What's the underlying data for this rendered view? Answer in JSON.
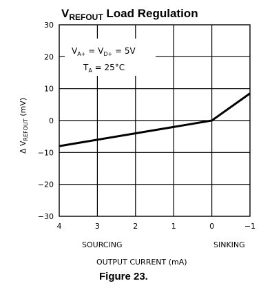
{
  "chart_data": {
    "type": "line",
    "title": {
      "main": "V",
      "sub": "REFOUT",
      "rest": " Load Regulation"
    },
    "ylabel": {
      "prefix": "Δ V",
      "sub": "REFOUT",
      "suffix": " (mV)"
    },
    "xlabel": "OUTPUT CURRENT (mA)",
    "xlabel_left": "SOURCING",
    "xlabel_right": "SINKING",
    "x_reversed": true,
    "xlim": [
      4,
      -1
    ],
    "ylim": [
      -30,
      30
    ],
    "x_ticks": [
      4,
      3,
      2,
      1,
      0,
      -1
    ],
    "x_tick_labels": [
      "4",
      "3",
      "2",
      "1",
      "0",
      "−1"
    ],
    "y_ticks": [
      30,
      20,
      10,
      0,
      -10,
      -20,
      -30
    ],
    "y_tick_labels": [
      "30",
      "20",
      "10",
      "0",
      "−10",
      "−20",
      "−30"
    ],
    "grid": true,
    "annotation": {
      "line1": {
        "V1": "V",
        "s1": "A+",
        "eq": " = ",
        "V2": "V",
        "s2": "D+",
        "val": " = 5V"
      },
      "line2": {
        "T": "T",
        "s": "A",
        "val": " = 25°C"
      }
    },
    "series": [
      {
        "x": [
          4,
          0,
          -1
        ],
        "y": [
          -8,
          0,
          8.5
        ]
      }
    ],
    "line_color": "#000000"
  },
  "caption": "Figure 23."
}
